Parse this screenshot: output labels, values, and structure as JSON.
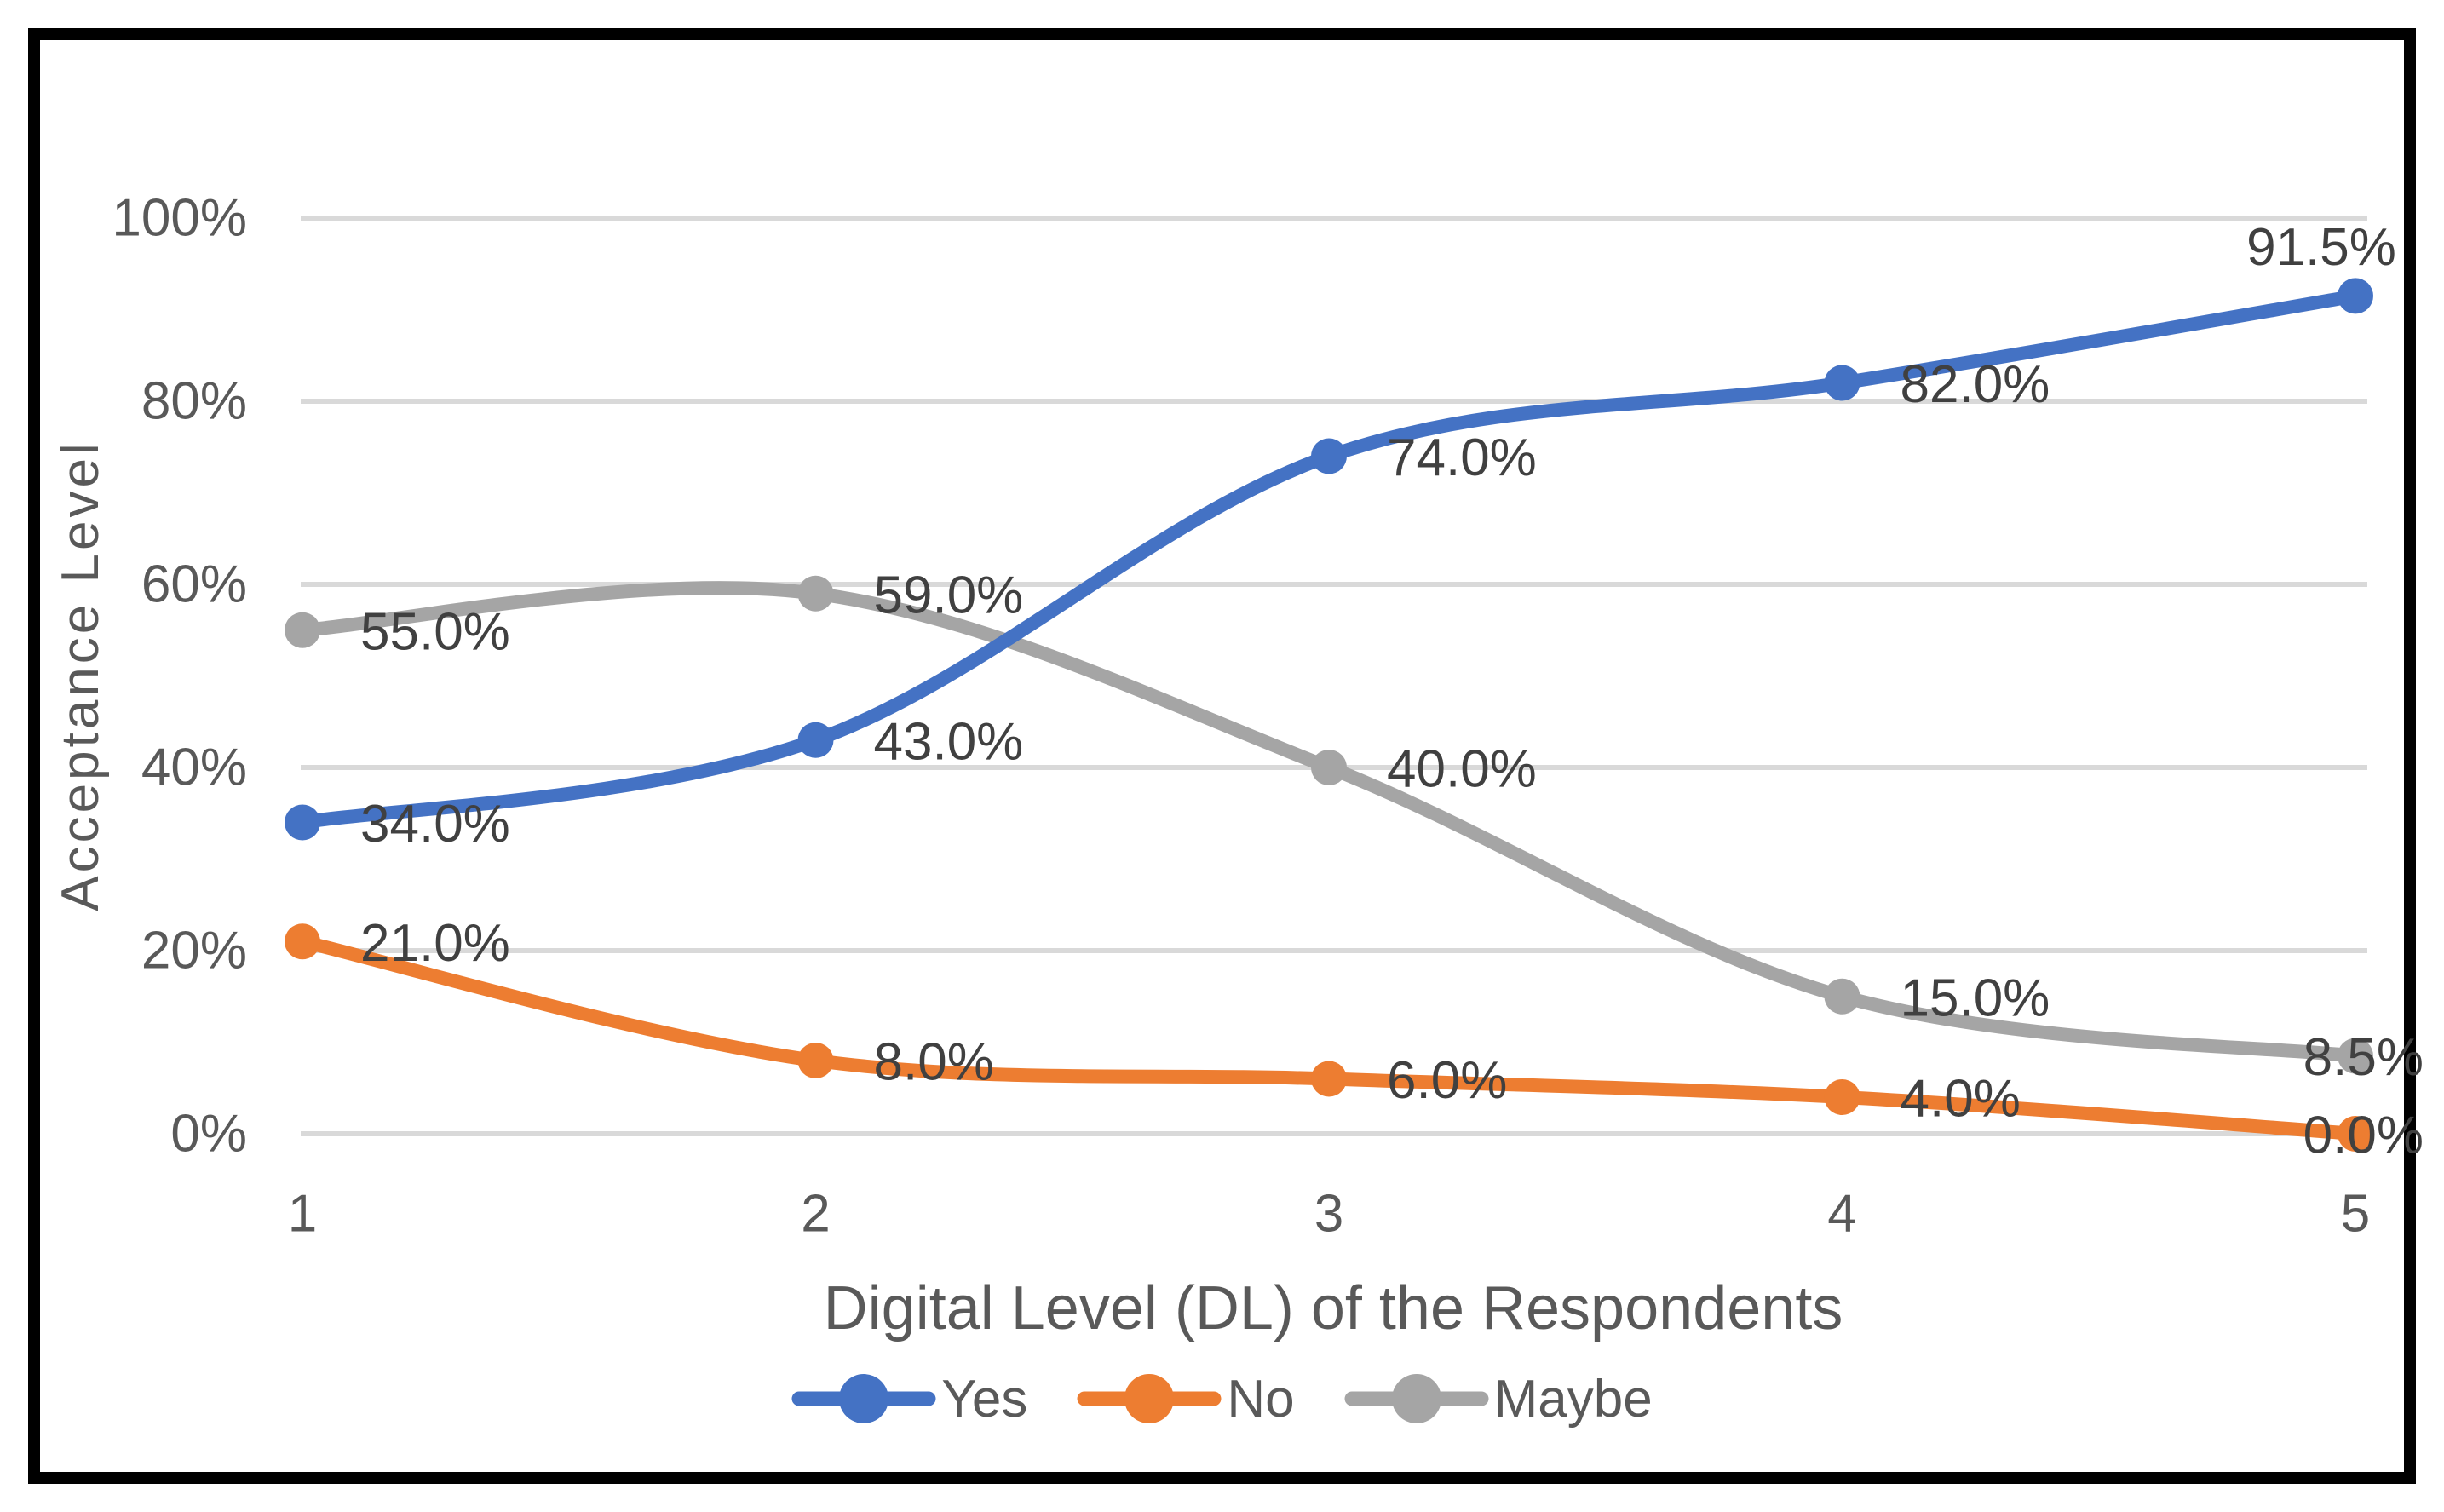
{
  "chart": {
    "y_axis": {
      "title": "Acceptance Level",
      "ticks": [
        {
          "value": 100,
          "label": "100%"
        },
        {
          "value": 80,
          "label": "80%"
        },
        {
          "value": 60,
          "label": "60%"
        },
        {
          "value": 40,
          "label": "40%"
        },
        {
          "value": 20,
          "label": "20%"
        },
        {
          "value": 0,
          "label": "0%"
        }
      ]
    },
    "x_axis": {
      "title": "Digital Level (DL) of the Respondents",
      "ticks": [
        "1",
        "2",
        "3",
        "4",
        "5"
      ]
    }
  },
  "chart_data": {
    "type": "line",
    "smooth": true,
    "x": [
      1,
      2,
      3,
      4,
      5
    ],
    "series": [
      {
        "name": "Yes",
        "color": "#4472C4",
        "values": [
          34,
          43,
          74,
          82,
          91.5
        ],
        "data_labels": [
          "34.0%",
          "43.0%",
          "74.0%",
          "82.0%",
          "91.5%"
        ]
      },
      {
        "name": "No",
        "color": "#ED7D31",
        "values": [
          21,
          8,
          6,
          4,
          0
        ],
        "data_labels": [
          "21.0%",
          "8.0%",
          "6.0%",
          "4.0%",
          "0.0%"
        ]
      },
      {
        "name": "Maybe",
        "color": "#A5A5A5",
        "values": [
          55,
          59,
          40,
          15,
          8.5
        ],
        "data_labels": [
          "55.0%",
          "59.0%",
          "40.0%",
          "15.0%",
          "8.5%"
        ]
      }
    ],
    "title": "",
    "xlabel": "Digital Level (DL) of the Respondents",
    "ylabel": "Acceptance Level",
    "ylim": [
      0,
      100
    ],
    "ytick_step": 20,
    "grid": true,
    "legend_position": "bottom"
  },
  "colors": {
    "gridline": "#D9D9D9",
    "tick_text": "#595959",
    "data_label_text": "#404040",
    "border": "#000000",
    "background": "#FFFFFF"
  }
}
